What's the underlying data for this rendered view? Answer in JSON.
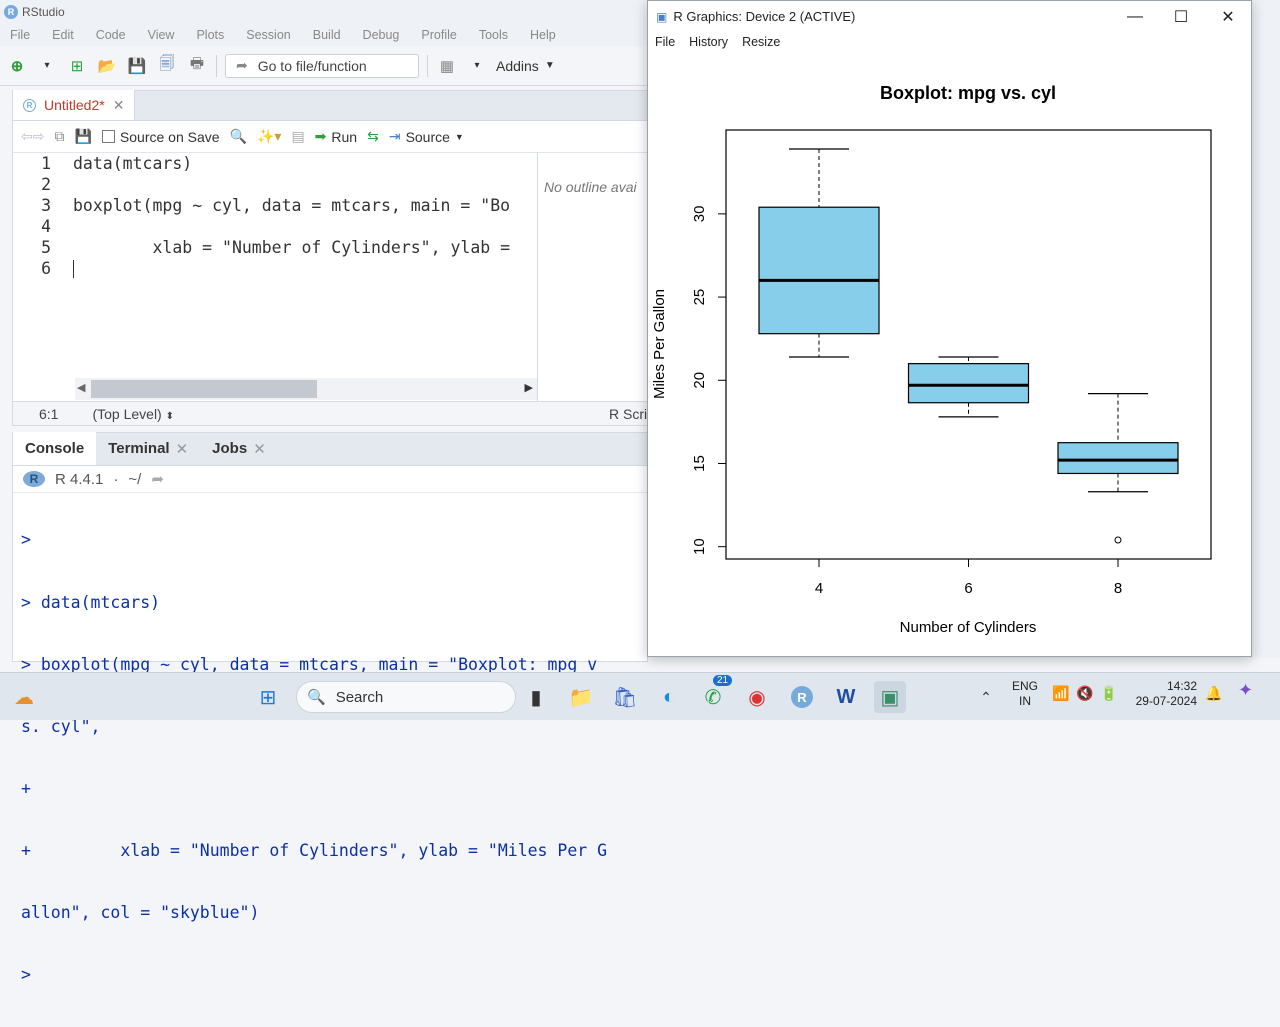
{
  "app": {
    "title": "RStudio"
  },
  "menu": [
    "File",
    "Edit",
    "Code",
    "View",
    "Plots",
    "Session",
    "Build",
    "Debug",
    "Profile",
    "Tools",
    "Help"
  ],
  "toolbar": {
    "goto_placeholder": "Go to file/function",
    "addins_label": "Addins"
  },
  "editor": {
    "tab_label": "Untitled2*",
    "source_on_save": "Source on Save",
    "run_label": "Run",
    "source_label": "Source",
    "lines": [
      {
        "num": "1",
        "text": "data(mtcars)"
      },
      {
        "num": "2",
        "text": ""
      },
      {
        "num": "3",
        "text": "boxplot(mpg ~ cyl, data = mtcars, main = \"Bo"
      },
      {
        "num": "4",
        "text": ""
      },
      {
        "num": "5",
        "text": "        xlab = \"Number of Cylinders\", ylab = "
      },
      {
        "num": "6",
        "text": ""
      }
    ],
    "outline_text": "No outline avai",
    "cursor_pos": "6:1",
    "scope": "(Top Level)",
    "file_type": "R Scri"
  },
  "console": {
    "tabs": [
      "Console",
      "Terminal",
      "Jobs"
    ],
    "version": "R 4.4.1",
    "path": "~/",
    "lines": [
      ">",
      "> data(mtcars)",
      "> boxplot(mpg ~ cyl, data = mtcars, main = \"Boxplot: mpg v",
      "s. cyl\",",
      "+",
      "+         xlab = \"Number of Cylinders\", ylab = \"Miles Per G",
      "allon\", col = \"skyblue\")",
      "> "
    ]
  },
  "graphics_window": {
    "title": "R Graphics: Device 2 (ACTIVE)",
    "menu": [
      "File",
      "History",
      "Resize"
    ]
  },
  "chart_data": {
    "type": "boxplot",
    "title": "Boxplot: mpg vs. cyl",
    "xlabel": "Number of Cylinders",
    "ylabel": "Miles Per Gallon",
    "categories": [
      "4",
      "6",
      "8"
    ],
    "boxes": [
      {
        "category": "4",
        "whisker_low": 21.4,
        "q1": 22.8,
        "median": 26.0,
        "q3": 30.4,
        "whisker_high": 33.9,
        "outliers": []
      },
      {
        "category": "6",
        "whisker_low": 17.8,
        "q1": 18.65,
        "median": 19.7,
        "q3": 21.0,
        "whisker_high": 21.4,
        "outliers": []
      },
      {
        "category": "8",
        "whisker_low": 13.3,
        "q1": 14.4,
        "median": 15.2,
        "q3": 16.25,
        "whisker_high": 19.2,
        "outliers": [
          10.4
        ]
      }
    ],
    "yticks": [
      10,
      15,
      20,
      25,
      30
    ],
    "ylim": [
      9.26,
      35.04
    ],
    "fill_color": "#87ceeb"
  },
  "taskbar": {
    "search_label": "Search",
    "lang_top": "ENG",
    "lang_bottom": "IN",
    "time": "14:32",
    "date": "29-07-2024",
    "whatsapp_badge": "21"
  }
}
